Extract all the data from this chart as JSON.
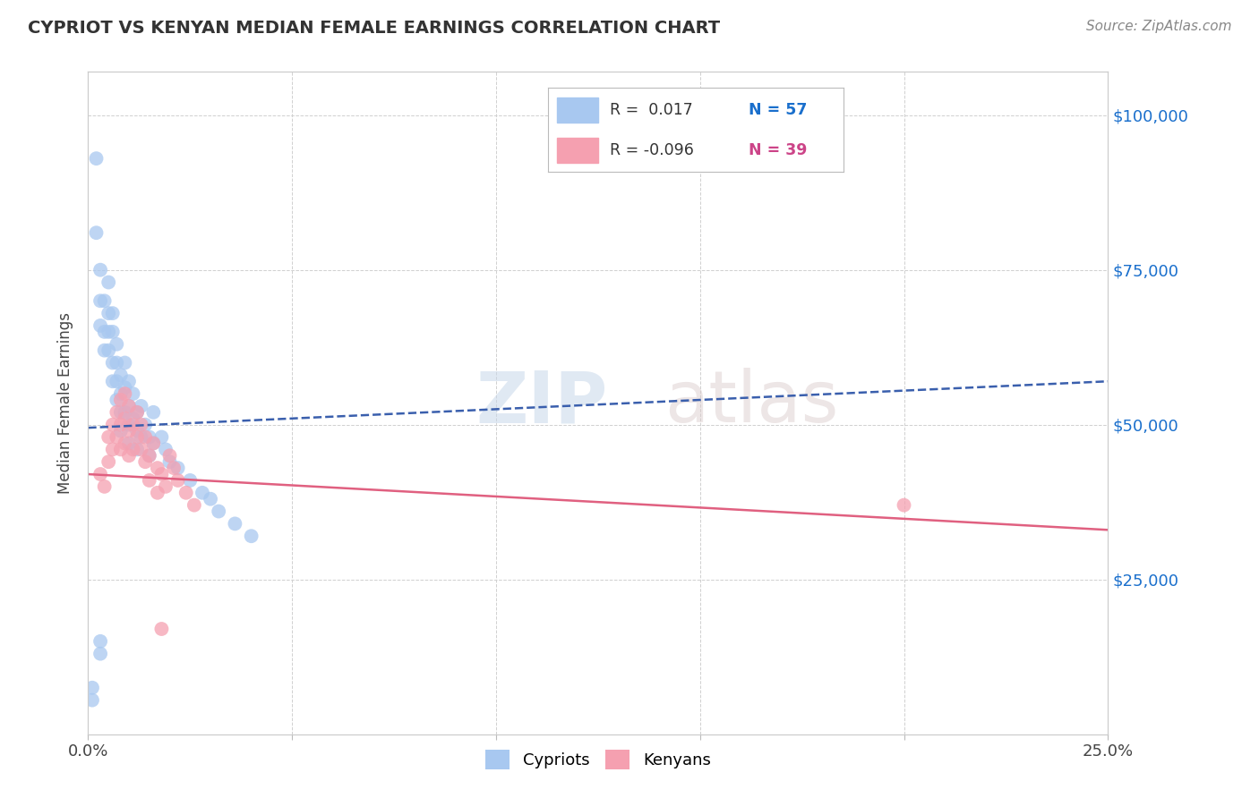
{
  "title": "CYPRIOT VS KENYAN MEDIAN FEMALE EARNINGS CORRELATION CHART",
  "source": "Source: ZipAtlas.com",
  "ylabel": "Median Female Earnings",
  "xlim": [
    0.0,
    0.25
  ],
  "ylim": [
    0,
    107000
  ],
  "background_color": "#ffffff",
  "grid_color": "#d0d0d0",
  "cypriot_color": "#a8c8f0",
  "kenyan_color": "#f5a0b0",
  "cypriot_line_color": "#3a5fad",
  "kenyan_line_color": "#e06080",
  "cypriot_scatter_x": [
    0.001,
    0.002,
    0.002,
    0.003,
    0.003,
    0.003,
    0.004,
    0.004,
    0.004,
    0.005,
    0.005,
    0.005,
    0.005,
    0.006,
    0.006,
    0.006,
    0.006,
    0.007,
    0.007,
    0.007,
    0.007,
    0.008,
    0.008,
    0.008,
    0.008,
    0.009,
    0.009,
    0.009,
    0.01,
    0.01,
    0.01,
    0.01,
    0.011,
    0.011,
    0.012,
    0.012,
    0.012,
    0.013,
    0.013,
    0.014,
    0.015,
    0.015,
    0.016,
    0.016,
    0.018,
    0.019,
    0.02,
    0.022,
    0.025,
    0.028,
    0.03,
    0.032,
    0.036,
    0.04,
    0.001,
    0.003,
    0.003
  ],
  "cypriot_scatter_y": [
    5500,
    93000,
    81000,
    75000,
    70000,
    66000,
    65000,
    62000,
    70000,
    68000,
    65000,
    62000,
    73000,
    68000,
    65000,
    60000,
    57000,
    63000,
    60000,
    57000,
    54000,
    58000,
    55000,
    52000,
    49000,
    60000,
    56000,
    52000,
    57000,
    53000,
    50000,
    47000,
    55000,
    51000,
    52000,
    49000,
    46000,
    53000,
    48000,
    50000,
    48000,
    45000,
    52000,
    47000,
    48000,
    46000,
    44000,
    43000,
    41000,
    39000,
    38000,
    36000,
    34000,
    32000,
    7500,
    15000,
    13000
  ],
  "kenyan_scatter_x": [
    0.003,
    0.004,
    0.005,
    0.005,
    0.006,
    0.006,
    0.007,
    0.007,
    0.008,
    0.008,
    0.008,
    0.009,
    0.009,
    0.009,
    0.01,
    0.01,
    0.01,
    0.011,
    0.011,
    0.012,
    0.012,
    0.013,
    0.013,
    0.014,
    0.014,
    0.015,
    0.015,
    0.016,
    0.017,
    0.017,
    0.018,
    0.019,
    0.02,
    0.021,
    0.022,
    0.024,
    0.026,
    0.018,
    0.2
  ],
  "kenyan_scatter_y": [
    42000,
    40000,
    48000,
    44000,
    50000,
    46000,
    52000,
    48000,
    54000,
    50000,
    46000,
    55000,
    51000,
    47000,
    53000,
    49000,
    45000,
    50000,
    46000,
    52000,
    48000,
    50000,
    46000,
    48000,
    44000,
    45000,
    41000,
    47000,
    43000,
    39000,
    42000,
    40000,
    45000,
    43000,
    41000,
    39000,
    37000,
    17000,
    37000
  ]
}
